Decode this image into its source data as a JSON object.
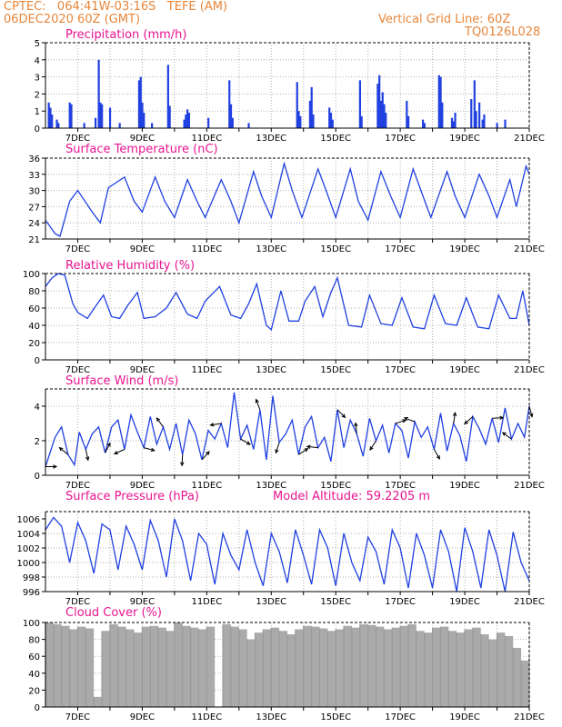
{
  "header": {
    "line1": "CPTEC:   064:41W-03:16S   TEFE (AM)",
    "line2": "06DEC2020 60Z (GMT)",
    "grid_note": "Vertical Grid Line: 60Z",
    "code": "TQ0126L028"
  },
  "colors": {
    "header": "#e8863a",
    "title": "#e81590",
    "line": "#2040e0",
    "bar": "#2040e0",
    "cloud": "#aaaaaa"
  },
  "chart_data": [
    {
      "id": "precip",
      "type": "bar",
      "title": "Precipitation (mm/h)",
      "ylim": [
        0,
        5
      ],
      "yticks": [
        0,
        1,
        2,
        3,
        4,
        5
      ],
      "xticks": [
        "7DEC",
        "9DEC",
        "11DEC",
        "13DEC",
        "15DEC",
        "17DEC",
        "19DEC",
        "21DEC"
      ],
      "x": [
        6.1,
        6.15,
        6.2,
        6.35,
        6.4,
        6.75,
        6.8,
        7.2,
        7.55,
        7.65,
        7.7,
        7.75,
        8.0,
        8.3,
        8.9,
        8.95,
        9.0,
        9.05,
        9.3,
        9.8,
        9.85,
        10.3,
        10.35,
        10.4,
        10.45,
        11.05,
        11.7,
        11.75,
        11.8,
        12.3,
        13.8,
        13.85,
        13.9,
        14.2,
        14.25,
        14.3,
        14.8,
        14.85,
        14.9,
        15.75,
        15.8,
        16.3,
        16.35,
        16.4,
        16.45,
        16.5,
        16.55,
        17.2,
        17.25,
        17.7,
        17.75,
        18.2,
        18.25,
        18.3,
        18.6,
        18.65,
        18.7,
        19.2,
        19.3,
        19.35,
        19.45,
        19.55,
        19.6,
        20.0,
        20.25
      ],
      "values": [
        1.5,
        1.2,
        0.8,
        0.5,
        0.3,
        1.5,
        1.4,
        0.3,
        0.6,
        4.0,
        1.5,
        1.4,
        1.2,
        0.3,
        2.8,
        3.0,
        1.5,
        0.9,
        0.3,
        3.7,
        1.3,
        0.5,
        0.8,
        1.1,
        0.9,
        0.6,
        2.8,
        1.4,
        0.6,
        0.3,
        2.7,
        1.0,
        0.7,
        1.6,
        2.4,
        0.8,
        1.2,
        0.9,
        0.5,
        2.8,
        0.7,
        2.6,
        3.1,
        1.6,
        2.1,
        1.4,
        0.9,
        1.6,
        0.7,
        0.5,
        0.3,
        3.1,
        3.0,
        1.5,
        0.6,
        0.4,
        0.9,
        1.7,
        2.8,
        1.0,
        1.5,
        0.5,
        0.8,
        0.3,
        0.5
      ]
    },
    {
      "id": "temp",
      "type": "line",
      "title": "Surface Temperature (nC)",
      "ylim": [
        21,
        36
      ],
      "yticks": [
        21,
        24,
        27,
        30,
        33,
        36
      ],
      "xticks": [
        "7DEC",
        "9DEC",
        "11DEC",
        "13DEC",
        "15DEC",
        "17DEC",
        "19DEC",
        "21DEC"
      ],
      "x": [
        6.0,
        6.3,
        6.45,
        6.75,
        7.0,
        7.45,
        7.7,
        7.95,
        8.45,
        8.75,
        9.0,
        9.4,
        9.7,
        10.0,
        10.4,
        10.7,
        10.95,
        11.45,
        11.75,
        12.0,
        12.45,
        12.7,
        13.0,
        13.4,
        13.65,
        13.95,
        14.45,
        14.7,
        15.0,
        15.45,
        15.7,
        16.0,
        16.4,
        16.7,
        17.0,
        17.4,
        17.7,
        17.95,
        18.45,
        18.7,
        19.0,
        19.45,
        19.75,
        20.0,
        20.4,
        20.6,
        20.9,
        21.0
      ],
      "values": [
        24.5,
        22.0,
        21.5,
        28.0,
        30.0,
        26.0,
        24.0,
        30.5,
        32.5,
        28.0,
        26.0,
        32.5,
        28.0,
        25.0,
        32.0,
        28.0,
        25.0,
        32.0,
        28.0,
        24.0,
        33.5,
        29.0,
        25.0,
        35.0,
        30.0,
        25.0,
        34.0,
        30.0,
        25.0,
        34.0,
        28.0,
        24.5,
        33.5,
        29.0,
        25.0,
        34.0,
        29.0,
        25.0,
        33.5,
        29.0,
        25.0,
        33.0,
        29.0,
        25.0,
        32.0,
        27.0,
        34.5,
        33.0
      ]
    },
    {
      "id": "rh",
      "type": "line",
      "title": "Relative Humidity (%)",
      "ylim": [
        0,
        100
      ],
      "yticks": [
        0,
        20,
        40,
        60,
        80,
        100
      ],
      "xticks": [
        "7DEC",
        "9DEC",
        "11DEC",
        "13DEC",
        "15DEC",
        "17DEC",
        "19DEC",
        "21DEC"
      ],
      "x": [
        6.0,
        6.2,
        6.4,
        6.6,
        6.85,
        7.0,
        7.3,
        7.55,
        7.8,
        8.05,
        8.3,
        8.55,
        8.85,
        9.05,
        9.4,
        9.75,
        10.05,
        10.4,
        10.7,
        10.95,
        11.4,
        11.75,
        12.05,
        12.3,
        12.55,
        12.85,
        13.0,
        13.3,
        13.55,
        13.85,
        14.05,
        14.35,
        14.6,
        14.85,
        15.05,
        15.4,
        15.8,
        16.05,
        16.4,
        16.75,
        17.05,
        17.4,
        17.75,
        18.05,
        18.4,
        18.75,
        19.05,
        19.4,
        19.75,
        20.05,
        20.4,
        20.6,
        20.8,
        21.0
      ],
      "values": [
        85,
        95,
        100,
        98,
        65,
        55,
        48,
        62,
        75,
        50,
        48,
        63,
        78,
        48,
        50,
        60,
        78,
        53,
        48,
        68,
        85,
        52,
        48,
        65,
        88,
        40,
        35,
        80,
        45,
        45,
        68,
        85,
        50,
        78,
        95,
        40,
        38,
        75,
        42,
        40,
        72,
        38,
        36,
        75,
        42,
        40,
        72,
        38,
        36,
        75,
        48,
        48,
        80,
        40
      ]
    },
    {
      "id": "wind",
      "type": "line",
      "title": "Surface Wind (m/s)",
      "ylim": [
        0,
        5
      ],
      "yticks": [
        0,
        2,
        4
      ],
      "xticks": [
        "7DEC",
        "9DEC",
        "11DEC",
        "13DEC",
        "15DEC",
        "17DEC",
        "19DEC",
        "21DEC"
      ],
      "x": [
        6.0,
        6.3,
        6.5,
        6.7,
        6.9,
        7.05,
        7.25,
        7.45,
        7.65,
        7.85,
        8.05,
        8.25,
        8.45,
        8.65,
        8.85,
        9.05,
        9.25,
        9.45,
        9.65,
        9.85,
        10.05,
        10.25,
        10.45,
        10.65,
        10.85,
        11.05,
        11.25,
        11.45,
        11.65,
        11.85,
        12.05,
        12.25,
        12.45,
        12.65,
        12.85,
        13.05,
        13.25,
        13.45,
        13.65,
        13.85,
        14.05,
        14.25,
        14.45,
        14.65,
        14.85,
        15.05,
        15.25,
        15.45,
        15.65,
        15.85,
        16.05,
        16.25,
        16.45,
        16.65,
        16.85,
        17.05,
        17.25,
        17.45,
        17.65,
        17.85,
        18.05,
        18.25,
        18.45,
        18.65,
        18.85,
        19.05,
        19.25,
        19.45,
        19.65,
        19.85,
        20.05,
        20.25,
        20.45,
        20.65,
        20.85,
        21.0
      ],
      "values": [
        0.5,
        2.2,
        2.8,
        1.2,
        0.6,
        2.5,
        1.5,
        2.4,
        2.8,
        1.3,
        2.8,
        3.2,
        1.5,
        3.5,
        2.5,
        1.6,
        3.4,
        1.8,
        2.8,
        1.5,
        3.0,
        1.2,
        3.2,
        2.4,
        0.9,
        2.6,
        2.1,
        3.0,
        1.6,
        4.8,
        2.1,
        2.9,
        1.5,
        3.8,
        0.9,
        4.6,
        1.9,
        2.4,
        3.2,
        1.2,
        2.8,
        3.4,
        1.6,
        2.2,
        0.8,
        3.8,
        1.6,
        3.2,
        2.4,
        1.1,
        3.3,
        2.0,
        2.9,
        1.3,
        3.0,
        2.6,
        1.0,
        3.1,
        2.2,
        2.8,
        1.5,
        3.6,
        1.4,
        3.0,
        2.3,
        0.8,
        3.4,
        2.7,
        1.8,
        3.3,
        1.9,
        3.9,
        2.1,
        3.0,
        2.2,
        4.0
      ]
    },
    {
      "id": "press",
      "type": "line",
      "title": "Surface Pressure (hPa)",
      "annotation": "Model Altitude: 59.2205 m",
      "ylim": [
        996,
        1007
      ],
      "yticks": [
        996,
        998,
        1000,
        1002,
        1004,
        1006
      ],
      "xticks": [
        "7DEC",
        "9DEC",
        "11DEC",
        "13DEC",
        "15DEC",
        "17DEC",
        "19DEC",
        "21DEC"
      ],
      "x": [
        6.0,
        6.25,
        6.5,
        6.75,
        7.0,
        7.25,
        7.5,
        7.75,
        8.0,
        8.25,
        8.5,
        8.75,
        9.0,
        9.25,
        9.5,
        9.75,
        10.0,
        10.25,
        10.5,
        10.75,
        11.0,
        11.25,
        11.5,
        11.75,
        12.0,
        12.25,
        12.5,
        12.75,
        13.0,
        13.25,
        13.5,
        13.75,
        14.0,
        14.25,
        14.5,
        14.75,
        15.0,
        15.25,
        15.5,
        15.75,
        16.0,
        16.25,
        16.5,
        16.75,
        17.0,
        17.25,
        17.5,
        17.75,
        18.0,
        18.25,
        18.5,
        18.75,
        19.0,
        19.25,
        19.5,
        19.75,
        20.0,
        20.25,
        20.5,
        20.75,
        21.0
      ],
      "values": [
        1004.5,
        1006.2,
        1005.0,
        1000.0,
        1005.5,
        1003.0,
        998.5,
        1005.3,
        1004.5,
        999.0,
        1005.0,
        1002.5,
        999.0,
        1005.8,
        1003.0,
        998.0,
        1006.0,
        1003.0,
        997.5,
        1004.0,
        1002.5,
        997.0,
        1004.0,
        1001.0,
        999.0,
        1004.5,
        1000.0,
        996.8,
        1004.0,
        1001.5,
        997.2,
        1004.5,
        1001.0,
        997.0,
        1004.5,
        1002.0,
        996.8,
        1004.0,
        1000.0,
        997.5,
        1003.5,
        1001.5,
        997.0,
        1004.5,
        1002.0,
        996.5,
        1004.0,
        1001.0,
        996.5,
        1004.5,
        1001.5,
        996.0,
        1004.8,
        1001.5,
        996.5,
        1004.5,
        1001.0,
        996.0,
        1004.2,
        1000.0,
        997.5
      ]
    },
    {
      "id": "cloud",
      "type": "bar",
      "title": "Cloud Cover (%)",
      "ylim": [
        0,
        100
      ],
      "yticks": [
        0,
        20,
        40,
        60,
        80,
        100
      ],
      "xticks": [
        "7DEC",
        "9DEC",
        "11DEC",
        "13DEC",
        "15DEC",
        "17DEC",
        "19DEC",
        "21DEC"
      ],
      "x": [
        6.0,
        6.25,
        6.5,
        6.75,
        7.0,
        7.25,
        7.5,
        7.75,
        8.0,
        8.25,
        8.5,
        8.75,
        9.0,
        9.25,
        9.5,
        9.75,
        10.0,
        10.25,
        10.5,
        10.75,
        11.0,
        11.25,
        11.5,
        11.75,
        12.0,
        12.25,
        12.5,
        12.75,
        13.0,
        13.25,
        13.5,
        13.75,
        14.0,
        14.25,
        14.5,
        14.75,
        15.0,
        15.25,
        15.5,
        15.75,
        16.0,
        16.25,
        16.5,
        16.75,
        17.0,
        17.25,
        17.5,
        17.75,
        18.0,
        18.25,
        18.5,
        18.75,
        19.0,
        19.25,
        19.5,
        19.75,
        20.0,
        20.25,
        20.5,
        20.75,
        21.0
      ],
      "values": [
        100,
        98,
        96,
        92,
        95,
        93,
        12,
        90,
        98,
        95,
        92,
        88,
        95,
        96,
        94,
        90,
        100,
        96,
        94,
        92,
        95,
        0,
        98,
        95,
        92,
        80,
        88,
        92,
        94,
        90,
        86,
        92,
        96,
        95,
        93,
        90,
        92,
        96,
        94,
        98,
        97,
        95,
        92,
        94,
        96,
        98,
        90,
        88,
        94,
        95,
        90,
        88,
        92,
        94,
        86,
        80,
        88,
        84,
        70,
        55,
        60
      ]
    }
  ]
}
